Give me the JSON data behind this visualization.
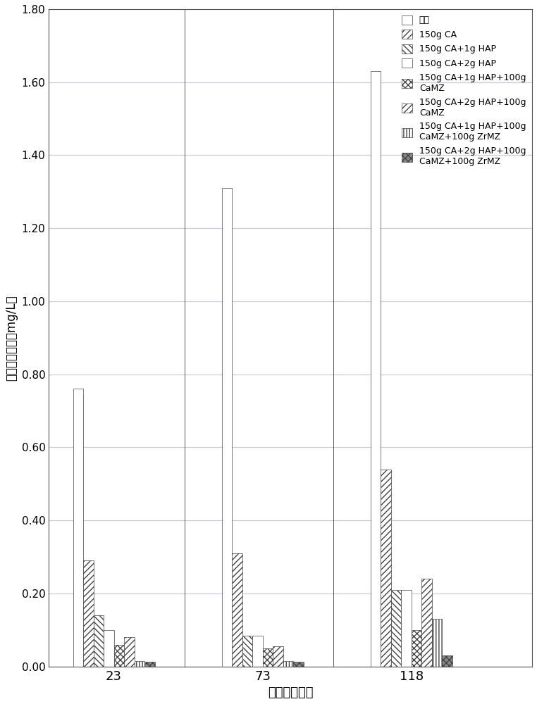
{
  "time_labels": [
    "23",
    "73",
    "118"
  ],
  "series": [
    {
      "label": "对照",
      "values": [
        0.76,
        1.31,
        1.63
      ],
      "hatch": "",
      "facecolor": "white",
      "edgecolor": "#444444"
    },
    {
      "label": "150g CA",
      "values": [
        0.29,
        0.31,
        0.54
      ],
      "hatch": "////",
      "facecolor": "white",
      "edgecolor": "#444444"
    },
    {
      "label": "150g CA+1g HAP",
      "values": [
        0.14,
        0.085,
        0.21
      ],
      "hatch": "////",
      "facecolor": "white",
      "edgecolor": "#444444"
    },
    {
      "label": "150g CA+2g HAP",
      "values": [
        0.1,
        0.085,
        0.21
      ],
      "hatch": "====",
      "facecolor": "white",
      "edgecolor": "#444444"
    },
    {
      "label": "150g CA+1g HAP+100g\nCaMZ",
      "values": [
        0.06,
        0.05,
        0.1
      ],
      "hatch": "xxxx",
      "facecolor": "white",
      "edgecolor": "#444444"
    },
    {
      "label": "150g CA+2g HAP+100g\nCaMZ",
      "values": [
        0.08,
        0.055,
        0.24
      ],
      "hatch": "////",
      "facecolor": "white",
      "edgecolor": "#444444"
    },
    {
      "label": "150g CA+1g HAP+100g\nCaMZ+100g ZrMZ",
      "values": [
        0.015,
        0.015,
        0.13
      ],
      "hatch": "||||",
      "facecolor": "white",
      "edgecolor": "#444444"
    },
    {
      "label": "150g CA+2g HAP+100g\nCaMZ+100g ZrMZ",
      "values": [
        0.013,
        0.013,
        0.03
      ],
      "hatch": "xxxx",
      "facecolor": "#888888",
      "edgecolor": "#444444"
    }
  ],
  "ylim": [
    0.0,
    1.8
  ],
  "yticks": [
    0.0,
    0.2,
    0.4,
    0.6,
    0.8,
    1.0,
    1.2,
    1.4,
    1.6,
    1.8
  ],
  "ylabel": "上覆水磷浓度（mg/L）",
  "xlabel": "时间（小时）",
  "bar_width": 0.055,
  "group_centers": [
    0.35,
    1.15,
    1.95
  ],
  "xlim": [
    0.0,
    2.6
  ],
  "figure_bg": "white",
  "axes_bg": "white",
  "grid_color": "#c8c8d8",
  "border_color": "#555555",
  "legend_fontsize": 9,
  "tick_fontsize": 13,
  "ylabel_fontsize": 12
}
